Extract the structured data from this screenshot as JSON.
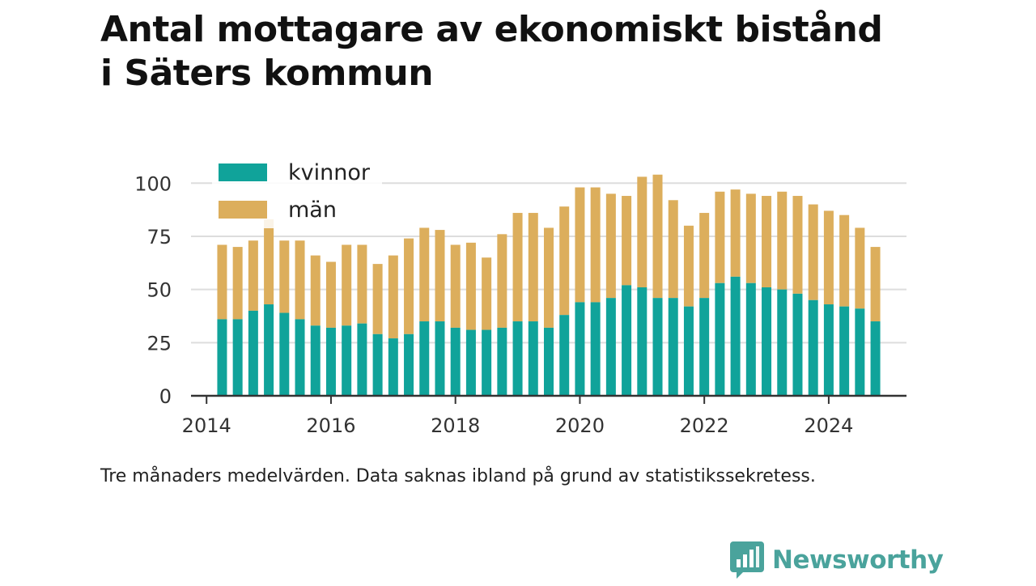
{
  "title": "Antal mottagare av ekonomiskt bistånd i Säters kommun",
  "note": "Tre månaders medelvärden. Data saknas ibland på grund av statistikssekretess.",
  "brand": {
    "name": "Newsworthy",
    "logo_icon": "bar-chart-speech-bubble-icon"
  },
  "colors": {
    "kvinnor": "#10a39a",
    "man": "#dcae5c",
    "grid": "#dddddd",
    "axis": "#333333",
    "brand": "#4aa39c"
  },
  "chart_data": {
    "type": "bar",
    "stacked": true,
    "title": "Antal mottagare av ekonomiskt bistånd i Säters kommun",
    "xlabel": "",
    "ylabel": "",
    "ylim": [
      0,
      110
    ],
    "yticks": [
      0,
      25,
      50,
      75,
      100
    ],
    "xlim": [
      "2013-10",
      "2025-04"
    ],
    "xticks": [
      "2014",
      "2016",
      "2018",
      "2020",
      "2022",
      "2024"
    ],
    "legend_position": "top-left",
    "grid": true,
    "x": [
      "2014-04",
      "2014-07",
      "2014-10",
      "2015-01",
      "2015-04",
      "2015-07",
      "2015-10",
      "2016-01",
      "2016-04",
      "2016-07",
      "2016-10",
      "2017-01",
      "2017-04",
      "2017-07",
      "2017-10",
      "2018-01",
      "2018-04",
      "2018-07",
      "2018-10",
      "2019-01",
      "2019-04",
      "2019-07",
      "2019-10",
      "2020-01",
      "2020-04",
      "2020-07",
      "2020-10",
      "2021-01",
      "2021-04",
      "2021-07",
      "2021-10",
      "2022-01",
      "2022-04",
      "2022-07",
      "2022-10",
      "2023-01",
      "2023-04",
      "2023-07",
      "2023-10",
      "2024-01",
      "2024-04",
      "2024-07",
      "2024-10"
    ],
    "series": [
      {
        "name": "kvinnor",
        "values": [
          36,
          36,
          40,
          43,
          39,
          36,
          33,
          32,
          33,
          34,
          29,
          27,
          29,
          35,
          35,
          32,
          31,
          31,
          32,
          35,
          35,
          32,
          38,
          44,
          44,
          46,
          52,
          51,
          46,
          46,
          42,
          46,
          53,
          56,
          53,
          51,
          50,
          48,
          45,
          43,
          42,
          41,
          35
        ]
      },
      {
        "name": "män",
        "values": [
          35,
          34,
          33,
          40,
          34,
          37,
          33,
          31,
          38,
          37,
          33,
          39,
          45,
          44,
          43,
          39,
          41,
          34,
          44,
          51,
          51,
          47,
          51,
          54,
          54,
          49,
          42,
          52,
          58,
          46,
          38,
          40,
          43,
          41,
          42,
          43,
          46,
          46,
          45,
          44,
          43,
          38,
          35
        ]
      }
    ]
  }
}
